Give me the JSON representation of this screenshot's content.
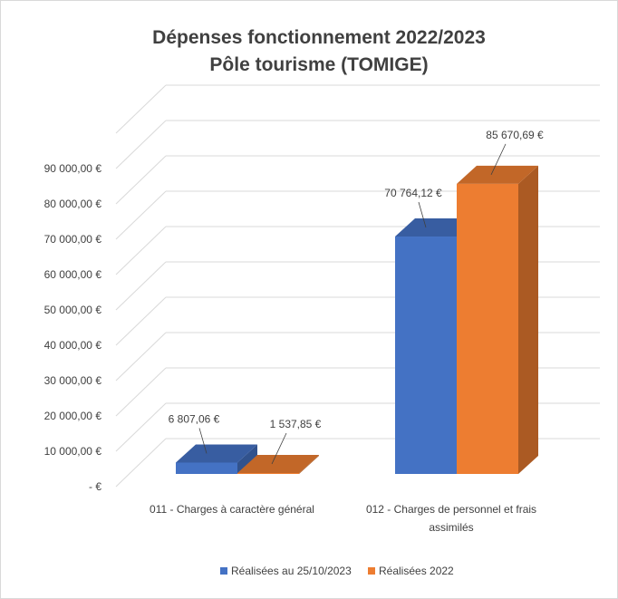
{
  "chart_data": {
    "type": "bar",
    "title": "Dépenses fonctionnement 2022/2023",
    "subtitle": "Pôle tourisme (TOMIGE)",
    "categories": [
      [
        "011 - Charges à caractère général"
      ],
      [
        "012 - Charges de personnel et frais",
        "assimilés"
      ]
    ],
    "series": [
      {
        "name": "Réalisées au 25/10/2023",
        "values": [
          6807.06,
          70764.12
        ],
        "labels": [
          "6 807,06 €",
          "70 764,12 €"
        ],
        "color": "#4472c4"
      },
      {
        "name": "Réalisées 2022",
        "values": [
          1537.85,
          85670.69
        ],
        "labels": [
          "1 537,85 €",
          "85 670,69 €"
        ],
        "color": "#ed7d31"
      }
    ],
    "yticks": [
      "-  €",
      "10 000,00 €",
      "20 000,00 €",
      "30 000,00 €",
      "40 000,00 €",
      "50 000,00 €",
      "60 000,00 €",
      "70 000,00 €",
      "80 000,00 €",
      "90 000,00 €"
    ],
    "ylim": [
      0,
      100000
    ],
    "grid": true,
    "legend_position": "bottom",
    "style": "3d-column"
  }
}
